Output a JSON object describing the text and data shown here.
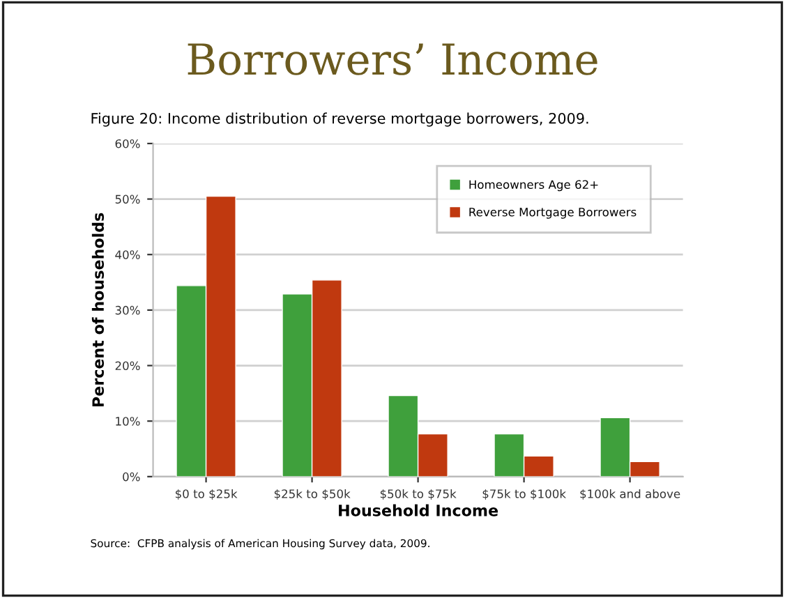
{
  "chart_data": {
    "type": "bar",
    "title": "Borrowers’ Income",
    "subtitle": "Figure 20: Income distribution of reverse mortgage borrowers, 2009.",
    "xlabel": "Household Income",
    "ylabel": "Percent of households",
    "categories": [
      "$0 to $25k",
      "$25k to $50k",
      "$50k to $75k",
      "$75k to $100k",
      "$100k and above"
    ],
    "series": [
      {
        "name": "Homeowners Age 62+",
        "color": "#3fa03c",
        "values": [
          34.4,
          32.9,
          14.6,
          7.7,
          10.6
        ]
      },
      {
        "name": "Reverse Mortgage Borrowers",
        "color": "#c0390f",
        "values": [
          50.5,
          35.4,
          7.7,
          3.7,
          2.7
        ]
      }
    ],
    "ylim": [
      0,
      60
    ],
    "yticks": [
      {
        "value": 0,
        "label": "0%"
      },
      {
        "value": 10,
        "label": "10%"
      },
      {
        "value": 20,
        "label": "20%"
      },
      {
        "value": 30,
        "label": "30%"
      },
      {
        "value": 40,
        "label": "40%"
      },
      {
        "value": 50,
        "label": "50%"
      },
      {
        "value": 60,
        "label": "60%"
      }
    ],
    "grid": "y",
    "legend": "top right",
    "annotations": [
      "Source:  CFPB analysis of American Housing Survey data, 2009."
    ]
  }
}
